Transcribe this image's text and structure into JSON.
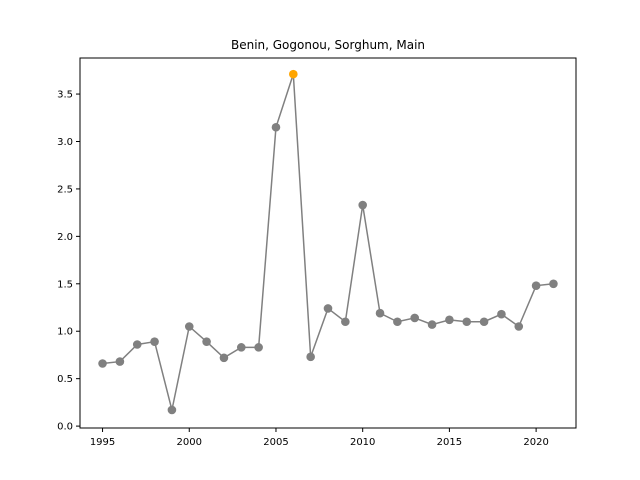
{
  "chart_data": {
    "type": "line",
    "title": "Benin, Gogonou, Sorghum, Main",
    "xlabel": "",
    "ylabel": "",
    "xlim": [
      1993.7,
      2022.3
    ],
    "ylim": [
      -0.02,
      3.88
    ],
    "x_ticks": [
      1995,
      2000,
      2005,
      2010,
      2015,
      2020
    ],
    "y_ticks": [
      0.0,
      0.5,
      1.0,
      1.5,
      2.0,
      2.5,
      3.0,
      3.5
    ],
    "grid": false,
    "line_color": "#808080",
    "marker_color": "#808080",
    "highlight_color": "#ffa500",
    "highlight_x": 2006,
    "x": [
      1995,
      1996,
      1997,
      1998,
      1999,
      2000,
      2001,
      2002,
      2003,
      2004,
      2005,
      2006,
      2007,
      2008,
      2009,
      2010,
      2011,
      2012,
      2013,
      2014,
      2015,
      2016,
      2017,
      2018,
      2019,
      2020,
      2021
    ],
    "y": [
      0.66,
      0.68,
      0.86,
      0.89,
      0.17,
      1.05,
      0.89,
      0.72,
      0.83,
      0.83,
      3.15,
      3.71,
      0.73,
      1.24,
      1.1,
      2.33,
      1.19,
      1.1,
      1.14,
      1.07,
      1.12,
      1.1,
      1.1,
      1.18,
      1.05,
      1.48,
      1.5
    ]
  }
}
